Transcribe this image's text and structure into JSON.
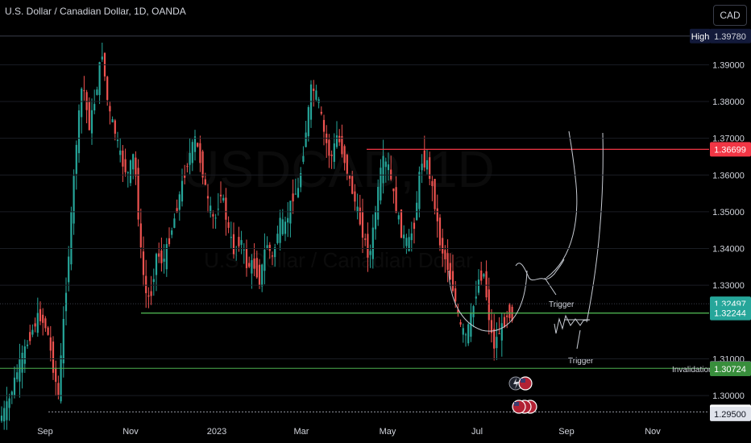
{
  "header": {
    "title": "U.S. Dollar / Canadian Dollar, 1D, OANDA",
    "currency_button": "CAD"
  },
  "watermark": {
    "symbol": "USDCAD, 1D",
    "name": "U.S. Dollar / Canadian Dollar"
  },
  "colors": {
    "up": "#26a69a",
    "down": "#ef5350",
    "resistance": "#f23645",
    "support": "#4caf50",
    "drawing": "#c8ccd4",
    "grid": "#1a1d24"
  },
  "annotations": {
    "trigger_1": "Trigger",
    "trigger_2": "Trigger",
    "invalidation": "Invalidation"
  },
  "chart_data": {
    "type": "candlestick",
    "symbol": "USDCAD",
    "timeframe": "1D",
    "x_ticks": [
      "Sep",
      "Nov",
      "2023",
      "Mar",
      "May",
      "Jul",
      "Sep",
      "Nov"
    ],
    "y_ticks": [
      "1.39000",
      "1.38000",
      "1.37000",
      "1.36000",
      "1.35000",
      "1.34000",
      "1.33000",
      "1.31000",
      "1.30000"
    ],
    "ylim": [
      1.2895,
      1.3995
    ],
    "price_tags": [
      {
        "label": "High",
        "value": "1.39780",
        "kind": "high"
      },
      {
        "label": "",
        "value": "1.36699",
        "kind": "resistance"
      },
      {
        "label": "",
        "value": "1.32497",
        "kind": "current"
      },
      {
        "label": "",
        "value": "1.32244",
        "kind": "support"
      },
      {
        "label": "",
        "value": "1.30740",
        "kind": "gray"
      },
      {
        "label": "",
        "value": "1.30724",
        "kind": "green"
      },
      {
        "label": "",
        "value": "1.29556",
        "kind": "light"
      },
      {
        "label": "",
        "value": "1.29500",
        "kind": "light2"
      }
    ],
    "levels": [
      {
        "name": "resistance",
        "value": 1.36699
      },
      {
        "name": "support",
        "value": 1.32244
      },
      {
        "name": "level-130740",
        "value": 1.3074
      },
      {
        "name": "invalidation",
        "value": 1.29556
      },
      {
        "name": "high",
        "value": 1.3978
      }
    ],
    "price_path": [
      [
        0,
        1.293
      ],
      [
        12,
        1.298
      ],
      [
        22,
        1.306
      ],
      [
        30,
        1.311
      ],
      [
        40,
        1.317
      ],
      [
        50,
        1.322
      ],
      [
        60,
        1.318
      ],
      [
        68,
        1.307
      ],
      [
        74,
        1.3
      ],
      [
        80,
        1.319
      ],
      [
        88,
        1.342
      ],
      [
        96,
        1.368
      ],
      [
        104,
        1.386
      ],
      [
        112,
        1.373
      ],
      [
        120,
        1.381
      ],
      [
        128,
        1.394
      ],
      [
        136,
        1.378
      ],
      [
        144,
        1.372
      ],
      [
        152,
        1.364
      ],
      [
        160,
        1.36
      ],
      [
        168,
        1.366
      ],
      [
        176,
        1.34
      ],
      [
        182,
        1.328
      ],
      [
        188,
        1.326
      ],
      [
        196,
        1.339
      ],
      [
        204,
        1.336
      ],
      [
        212,
        1.343
      ],
      [
        220,
        1.35
      ],
      [
        228,
        1.358
      ],
      [
        236,
        1.365
      ],
      [
        244,
        1.37
      ],
      [
        252,
        1.362
      ],
      [
        260,
        1.352
      ],
      [
        268,
        1.347
      ],
      [
        276,
        1.356
      ],
      [
        284,
        1.346
      ],
      [
        292,
        1.339
      ],
      [
        300,
        1.343
      ],
      [
        308,
        1.335
      ],
      [
        316,
        1.336
      ],
      [
        324,
        1.331
      ],
      [
        332,
        1.342
      ],
      [
        340,
        1.337
      ],
      [
        348,
        1.347
      ],
      [
        356,
        1.346
      ],
      [
        364,
        1.354
      ],
      [
        372,
        1.356
      ],
      [
        380,
        1.37
      ],
      [
        388,
        1.384
      ],
      [
        396,
        1.381
      ],
      [
        404,
        1.371
      ],
      [
        412,
        1.364
      ],
      [
        420,
        1.371
      ],
      [
        428,
        1.365
      ],
      [
        436,
        1.358
      ],
      [
        444,
        1.351
      ],
      [
        452,
        1.344
      ],
      [
        460,
        1.337
      ],
      [
        468,
        1.351
      ],
      [
        476,
        1.364
      ],
      [
        484,
        1.362
      ],
      [
        492,
        1.352
      ],
      [
        500,
        1.344
      ],
      [
        508,
        1.341
      ],
      [
        516,
        1.347
      ],
      [
        524,
        1.364
      ],
      [
        532,
        1.363
      ],
      [
        540,
        1.354
      ],
      [
        548,
        1.341
      ],
      [
        556,
        1.336
      ],
      [
        564,
        1.329
      ],
      [
        572,
        1.319
      ],
      [
        580,
        1.316
      ],
      [
        588,
        1.323
      ],
      [
        596,
        1.332
      ],
      [
        602,
        1.333
      ],
      [
        608,
        1.322
      ],
      [
        614,
        1.313
      ],
      [
        620,
        1.317
      ],
      [
        626,
        1.319
      ],
      [
        632,
        1.323
      ],
      [
        638,
        1.321
      ]
    ]
  }
}
